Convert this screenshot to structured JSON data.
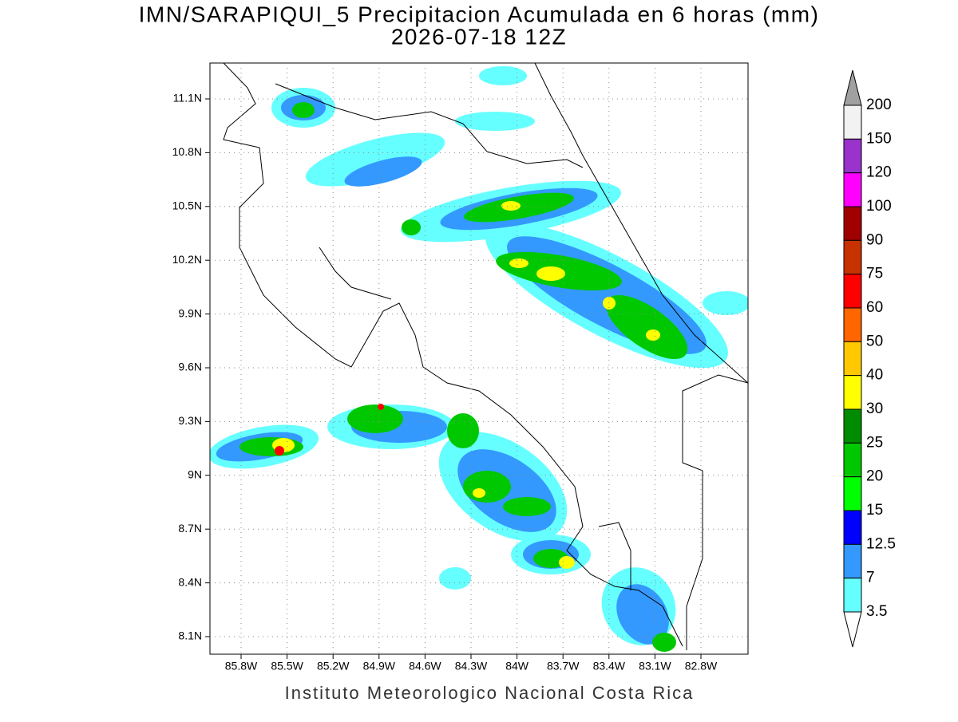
{
  "header": {
    "title": "IMN/SARAPIQUI_5 Precipitacion Acumulada en 6 horas (mm)",
    "subtitle": "2026-07-18 12Z"
  },
  "map": {
    "lat_labels": [
      "11.1N",
      "10.8N",
      "10.5N",
      "10.2N",
      "9.9N",
      "9.6N",
      "9.3N",
      "9N",
      "8.7N",
      "8.4N",
      "8.1N"
    ],
    "lon_labels": [
      "85.8W",
      "85.5W",
      "85.2W",
      "84.9W",
      "84.6W",
      "84.3W",
      "84W",
      "83.7W",
      "83.4W",
      "83.1W",
      "82.8W"
    ],
    "grid": true
  },
  "colorbar": {
    "labels": [
      "200",
      "150",
      "120",
      "100",
      "90",
      "75",
      "60",
      "50",
      "40",
      "30",
      "25",
      "20",
      "15",
      "12.5",
      "7",
      "3.5"
    ],
    "colors": [
      "#f2f2f2",
      "#9933cc",
      "#ff00ff",
      "#a00000",
      "#c83200",
      "#ff0000",
      "#ff6600",
      "#ffc800",
      "#ffff00",
      "#008c00",
      "#00c800",
      "#00ff00",
      "#0000ff",
      "#3399ff",
      "#66ffff"
    ],
    "over_color": "#a0a0a0",
    "under_color": "#ffffff"
  },
  "footer": {
    "text": "Instituto Meteorologico Nacional Costa Rica"
  }
}
